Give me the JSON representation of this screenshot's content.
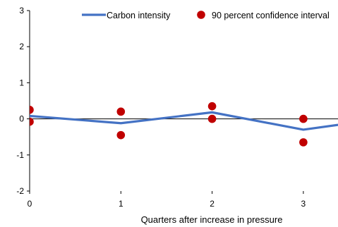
{
  "chart_data": {
    "type": "line",
    "title": "",
    "xlabel": "Quarters after increase in pressure",
    "ylabel": "",
    "x": [
      0,
      1,
      2,
      3,
      4
    ],
    "x_ticks": [
      "0",
      "1",
      "2",
      "3"
    ],
    "xlim": [
      0,
      3.4
    ],
    "ylim": [
      -2,
      3
    ],
    "y_ticks": [
      "-2",
      "-1",
      "0",
      "1",
      "2",
      "3"
    ],
    "grid": false,
    "legend": {
      "placement": "top",
      "entries": [
        "Carbon intensity",
        "90 percent confidence interval"
      ]
    },
    "series": [
      {
        "name": "Carbon intensity",
        "kind": "line",
        "color": "#4472c4",
        "values": [
          0.08,
          -0.12,
          0.18,
          -0.3,
          0.05
        ]
      },
      {
        "name": "90 percent confidence interval",
        "kind": "scatter",
        "color": "#c00000",
        "points": [
          {
            "x": 0,
            "y": 0.25
          },
          {
            "x": 0,
            "y": -0.08
          },
          {
            "x": 1,
            "y": 0.2
          },
          {
            "x": 1,
            "y": -0.45
          },
          {
            "x": 2,
            "y": 0.35
          },
          {
            "x": 2,
            "y": 0.0
          },
          {
            "x": 3,
            "y": 0.0
          },
          {
            "x": 3,
            "y": -0.65
          }
        ]
      }
    ]
  }
}
